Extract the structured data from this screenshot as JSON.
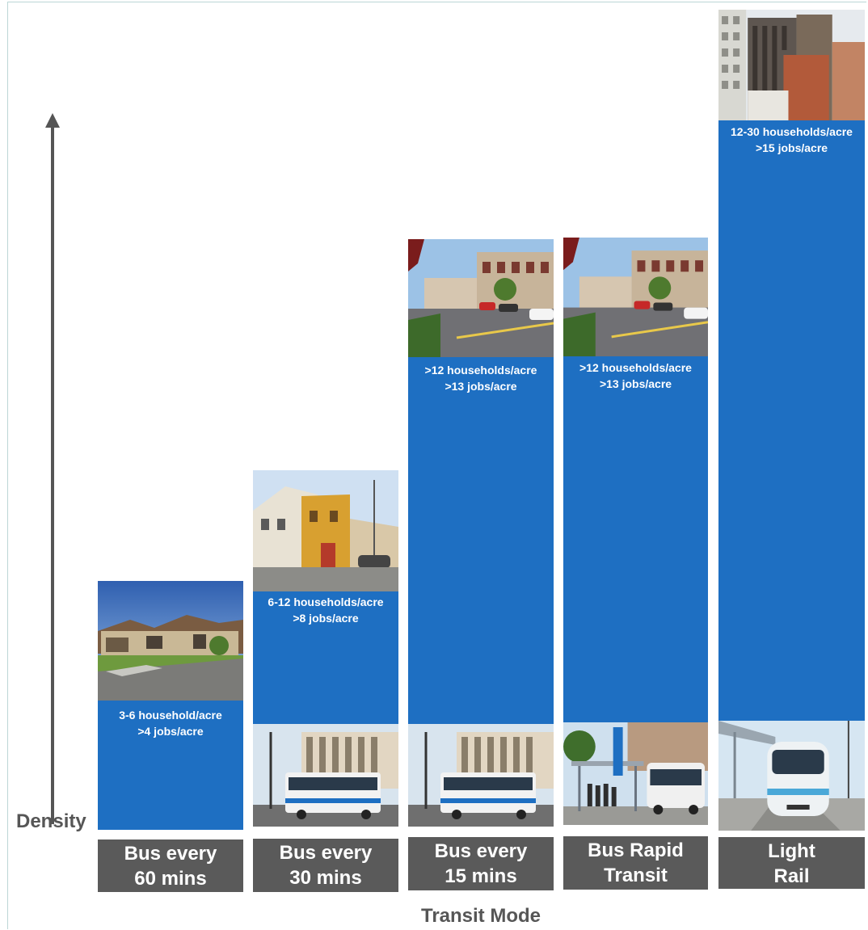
{
  "y_axis_label": "Density",
  "x_axis_title": "Transit Mode",
  "columns": [
    {
      "mode": [
        "Bus every",
        "60 mins"
      ],
      "density": [
        "3-6 household/acre",
        ">4 jobs/acre"
      ],
      "level": 1,
      "housing_photo": "single-family-houses",
      "transit_photo": null
    },
    {
      "mode": [
        "Bus every",
        "30 mins"
      ],
      "density": [
        "6-12 households/acre",
        ">8 jobs/acre"
      ],
      "level": 2,
      "housing_photo": "townhouse-apartments",
      "transit_photo": "city-bus"
    },
    {
      "mode": [
        "Bus every",
        "15 mins"
      ],
      "density": [
        ">12 households/acre",
        ">13 jobs/acre"
      ],
      "level": 3,
      "housing_photo": "main-street-shops",
      "transit_photo": "city-bus"
    },
    {
      "mode": [
        "Bus Rapid",
        "Transit"
      ],
      "density": [
        ">12 households/acre",
        ">13 jobs/acre"
      ],
      "level": 3,
      "housing_photo": "main-street-shops",
      "transit_photo": "brt-station"
    },
    {
      "mode": [
        "Light",
        "Rail"
      ],
      "density": [
        "12-30 households/acre",
        ">15 jobs/acre"
      ],
      "level": 4,
      "housing_photo": "downtown-towers",
      "transit_photo": "light-rail-train"
    }
  ],
  "colors": {
    "bar": "#1e6fc2",
    "label_bg": "#5a5a5a",
    "axis": "#555555"
  }
}
